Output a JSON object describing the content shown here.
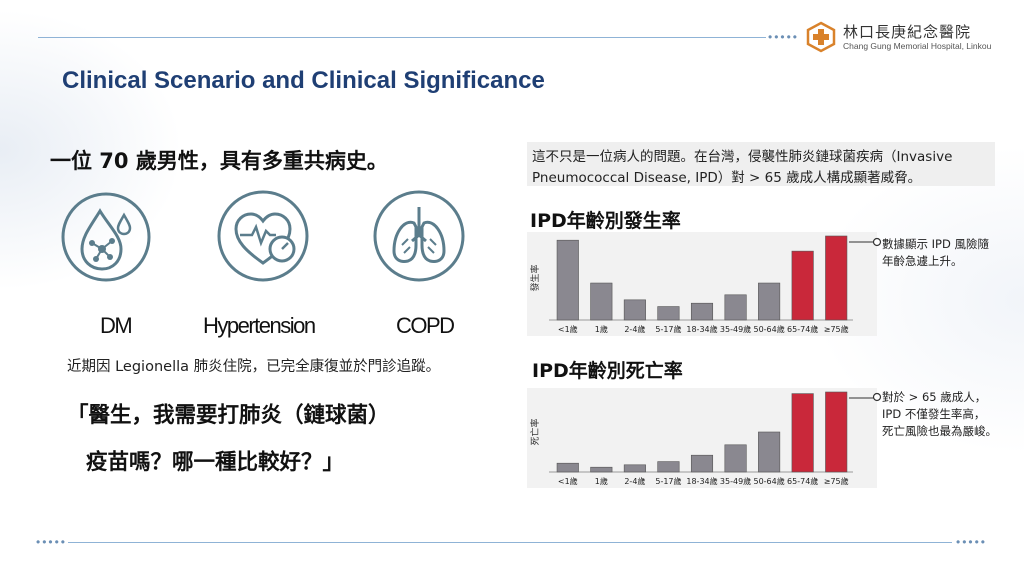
{
  "header": {
    "logo_cn": "林口長庚紀念醫院",
    "logo_en": "Chang Gung Memorial Hospital, Linkou",
    "dots_top": "•••••",
    "dots_bottom_left": "•••••",
    "dots_bottom_right": "•••••"
  },
  "slide": {
    "title": "Clinical Scenario and Clinical Significance"
  },
  "case": {
    "headline": "一位 70 歲男性，具有多重共病史。",
    "comorbidities": [
      {
        "label": "DM",
        "icon": "blood-drop-molecule-icon"
      },
      {
        "label": "Hypertension",
        "icon": "heart-gauge-icon"
      },
      {
        "label": "COPD",
        "icon": "lungs-icon"
      }
    ],
    "history": "近期因 Legionella 肺炎住院，已完全康復並於門診追蹤。",
    "quote_line1": "「醫生，我需要打肺炎（鏈球菌）",
    "quote_line2": "疫苗嗎？哪一種比較好？」"
  },
  "context": {
    "line1": "這不只是一位病人的問題。在台灣，侵襲性肺炎鏈球菌疾病（Invasive",
    "line2": "Pneumococcal Disease, IPD）對 > 65 歲成人構成顯著威脅。"
  },
  "colors": {
    "title": "#1f3f74",
    "gray_bar": "#8a8890",
    "red_bar": "#c9283a",
    "rule": "#8fb3d6"
  },
  "chart_data": [
    {
      "type": "bar",
      "title": "IPD年齡別發生率",
      "ylabel": "發生率",
      "categories": [
        "<1歲",
        "1歲",
        "2-4歲",
        "5-17歲",
        "18-34歲",
        "35-49歲",
        "50-64歲",
        "65-74歲",
        "≥75歲"
      ],
      "values": [
        95,
        44,
        24,
        16,
        20,
        30,
        44,
        82,
        100
      ],
      "highlight": [
        false,
        false,
        false,
        false,
        false,
        false,
        false,
        true,
        true
      ],
      "ylim": [
        0,
        100
      ],
      "annotation": [
        "數據顯示 IPD 風險隨",
        "年齡急遽上升。"
      ]
    },
    {
      "type": "bar",
      "title": "IPD年齡別死亡率",
      "ylabel": "死亡率",
      "categories": [
        "<1歲",
        "1歲",
        "2-4歲",
        "5-17歲",
        "18-34歲",
        "35-49歲",
        "50-64歲",
        "65-74歲",
        "≥75歲"
      ],
      "values": [
        11,
        6,
        9,
        13,
        21,
        34,
        50,
        98,
        100
      ],
      "highlight": [
        false,
        false,
        false,
        false,
        false,
        false,
        false,
        true,
        true
      ],
      "ylim": [
        0,
        100
      ],
      "annotation": [
        "對於 > 65 歲成人，",
        "IPD 不僅發生率高，",
        "死亡風險也最為嚴峻。"
      ]
    }
  ]
}
